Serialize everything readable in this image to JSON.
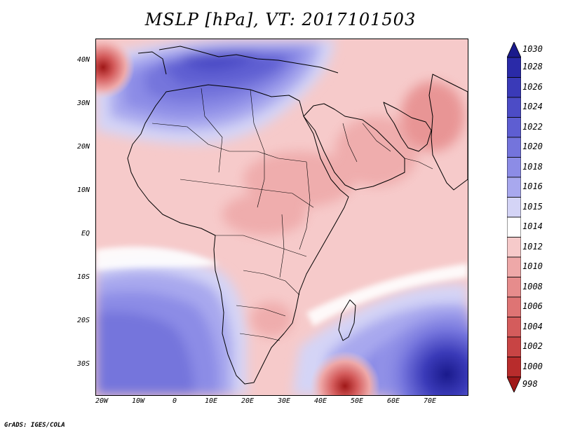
{
  "title": "MSLP [hPa], VT: 2017101503",
  "footer": "GrADS: IGES/COLA",
  "map": {
    "lat_labels": [
      "40N",
      "30N",
      "20N",
      "10N",
      "EQ",
      "10S",
      "20S",
      "30S"
    ],
    "lon_labels": [
      "20W",
      "10W",
      "0",
      "10E",
      "20E",
      "30E",
      "40E",
      "50E",
      "60E",
      "70E"
    ]
  },
  "colorbar": {
    "labels": [
      "1030",
      "1028",
      "1026",
      "1024",
      "1022",
      "1020",
      "1018",
      "1016",
      "1015",
      "1014",
      "1012",
      "1010",
      "1008",
      "1006",
      "1004",
      "1002",
      "1000",
      "998"
    ],
    "colors": [
      "#1a1a8c",
      "#2a2aa8",
      "#3a3ab8",
      "#4c4cc6",
      "#5e5ed2",
      "#7474dc",
      "#8c8ce6",
      "#a8a8ee",
      "#d4d4f6",
      "#ffffff",
      "#f6caca",
      "#eea8a8",
      "#e68c8c",
      "#de7474",
      "#d45c5c",
      "#c84444",
      "#b82c2c",
      "#a01818"
    ]
  }
}
